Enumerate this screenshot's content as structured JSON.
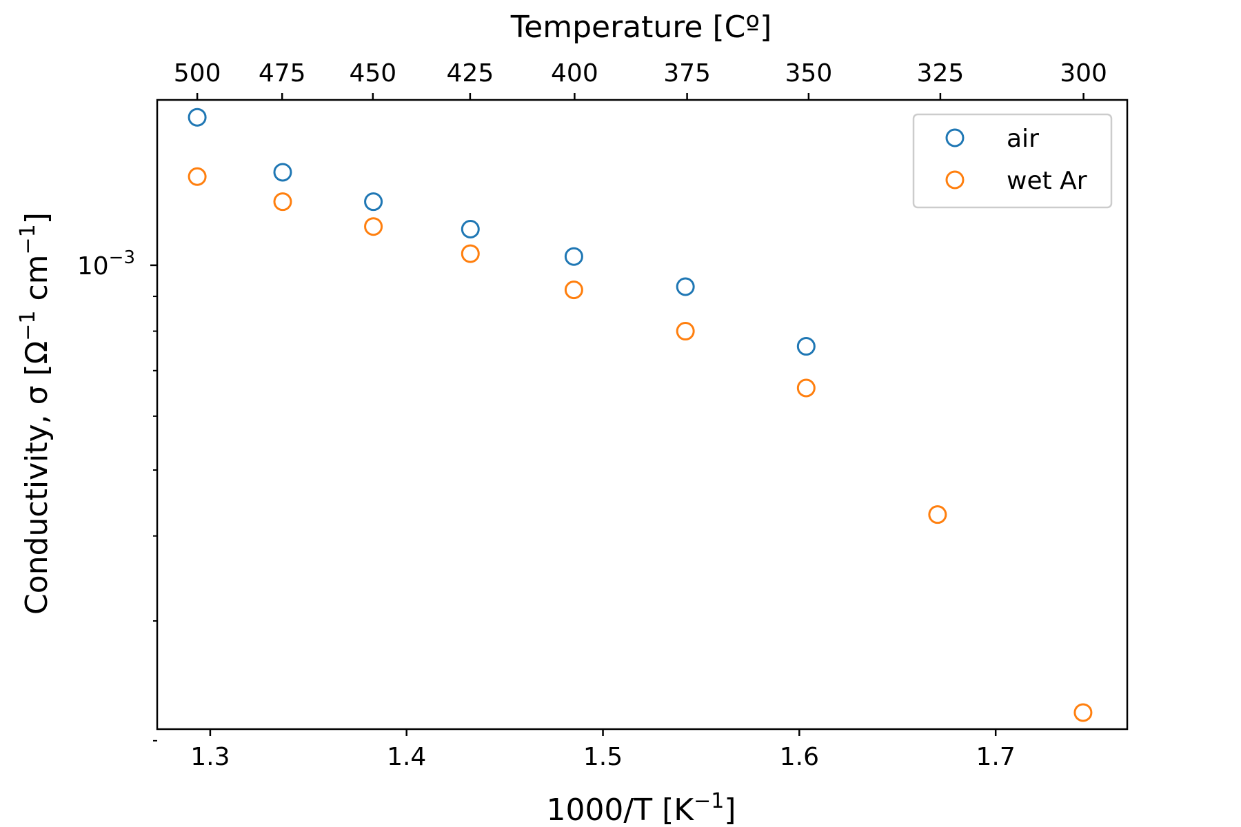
{
  "chart_data": {
    "type": "scatter",
    "xlabel_main": "1000/T  [K",
    "xlabel_sup": "−1",
    "xlabel_end": "]",
    "top_xlabel": "Temperature  [Cº]",
    "ylabel_main": "Conductivity, σ  [Ω",
    "ylabel_sup1": "−1",
    "ylabel_mid": " cm",
    "ylabel_sup2": "−1",
    "ylabel_end": "]",
    "yscale": "log",
    "xlim": [
      1.273,
      1.767
    ],
    "ylim": [
      0.000208,
      0.00175
    ],
    "x_ticks": [
      1.3,
      1.4,
      1.5,
      1.6,
      1.7
    ],
    "x_tick_labels": [
      "1.3",
      "1.4",
      "1.5",
      "1.6",
      "1.7"
    ],
    "top_ticks_celsius": [
      500,
      475,
      450,
      425,
      400,
      375,
      350,
      325,
      300
    ],
    "top_tick_labels": [
      "500",
      "475",
      "450",
      "425",
      "400",
      "375",
      "350",
      "325",
      "300"
    ],
    "y_major_ticks": [
      0.001
    ],
    "y_major_tick_base": "10",
    "y_major_tick_exp": "−3",
    "y_minor_ticks": [
      0.0002,
      0.0003,
      0.0004,
      0.0005,
      0.0006,
      0.0007,
      0.0008,
      0.0009
    ],
    "legend_location": "upper right",
    "series": [
      {
        "name": "air",
        "color": "#1f77b4",
        "marker": "open-circle",
        "x": [
          1.2934,
          1.3369,
          1.3831,
          1.4325,
          1.4852,
          1.542,
          1.6035
        ],
        "y": [
          0.00165,
          0.00137,
          0.00124,
          0.00113,
          0.00103,
          0.00093,
          0.00076
        ]
      },
      {
        "name": "wet Ar",
        "color": "#ff7f0e",
        "marker": "open-circle",
        "x": [
          1.2934,
          1.3369,
          1.3831,
          1.4325,
          1.4852,
          1.542,
          1.6035,
          1.6704,
          1.7445
        ],
        "y": [
          0.00135,
          0.00124,
          0.00114,
          0.00104,
          0.00092,
          0.0008,
          0.00066,
          0.00043,
          0.00022
        ]
      }
    ]
  }
}
